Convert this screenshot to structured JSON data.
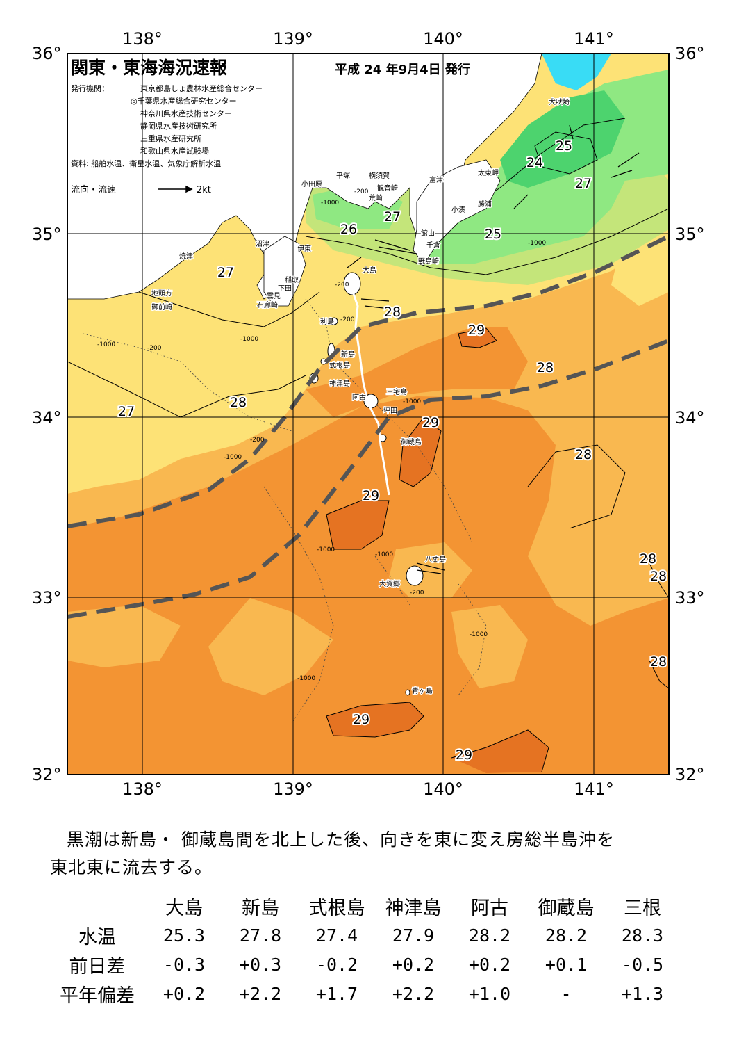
{
  "header": {
    "title": "関東・東海海況速報",
    "date": "平成 24 年9月4日 発行",
    "publisher_label": "発行機関：",
    "publishers": [
      "東京都島しょ農林水産総合センター",
      "◎千葉県水産総合研究センター",
      "神奈川県水産技術センター",
      "静岡県水産技術研究所",
      "三重県水産研究所",
      "和歌山県水産試験場"
    ],
    "source": "資料: 船舶水温、衛星水温、気象庁解析水温",
    "legend_label": "流向・流速",
    "legend_scale": "2kt"
  },
  "axes": {
    "lon_labels": [
      "138°",
      "139°",
      "140°",
      "141°"
    ],
    "lat_labels": [
      "36°",
      "35°",
      "34°",
      "33°",
      "32°"
    ],
    "lon_range": [
      137.5,
      141.5
    ],
    "lat_range": [
      32,
      36
    ]
  },
  "isotherm_labels": [
    "24",
    "25",
    "25",
    "25",
    "26",
    "27",
    "27",
    "27",
    "27",
    "28",
    "28",
    "28",
    "28",
    "28",
    "28",
    "28",
    "28",
    "29",
    "29",
    "29",
    "29",
    "29"
  ],
  "place_names": [
    "小田原",
    "平塚",
    "横須賀",
    "観音崎",
    "荒崎",
    "富津",
    "犬吠埼",
    "太東岬",
    "勝浦",
    "小湊",
    "館山",
    "千倉",
    "野島崎",
    "大島",
    "沼津",
    "伊東",
    "焼津",
    "稲取",
    "下田",
    "雲見",
    "石廊崎",
    "地頭方",
    "御前崎",
    "利島",
    "新島",
    "式根島",
    "神津島",
    "三宅島",
    "阿古",
    "坪田",
    "御蔵島",
    "八丈島",
    "大賀郷",
    "青ヶ島"
  ],
  "depth_labels": [
    "-1000",
    "-200"
  ],
  "colors": {
    "temp_24": "#4dd36e",
    "temp_25": "#8fe882",
    "temp_26": "#c4e57a",
    "temp_27": "#fde276",
    "temp_28": "#f9b850",
    "temp_29": "#f39433",
    "temp_30": "#e57322",
    "cold": "#39dcf5",
    "kuroshio_axis": "#555555",
    "land": "#ffffff"
  },
  "summary": {
    "line1": "黒潮は新島・ 御蔵島間を北上した後、向きを東に変え房総半島沖を",
    "line2": "東北東に流去する。"
  },
  "table": {
    "columns": [
      "大島",
      "新島",
      "式根島",
      "神津島",
      "阿古",
      "御蔵島",
      "三根"
    ],
    "rows": [
      {
        "label": "水温",
        "values": [
          "25.3",
          "27.8",
          "27.4",
          "27.9",
          "28.2",
          "28.2",
          "28.3"
        ]
      },
      {
        "label": "前日差",
        "values": [
          "-0.3",
          "+0.3",
          "-0.2",
          "+0.2",
          "+0.2",
          "+0.1",
          "-0.5"
        ]
      },
      {
        "label": "平年偏差",
        "values": [
          "+0.2",
          "+2.2",
          "+1.7",
          "+2.2",
          "+1.0",
          "-",
          "+1.3"
        ]
      }
    ]
  }
}
